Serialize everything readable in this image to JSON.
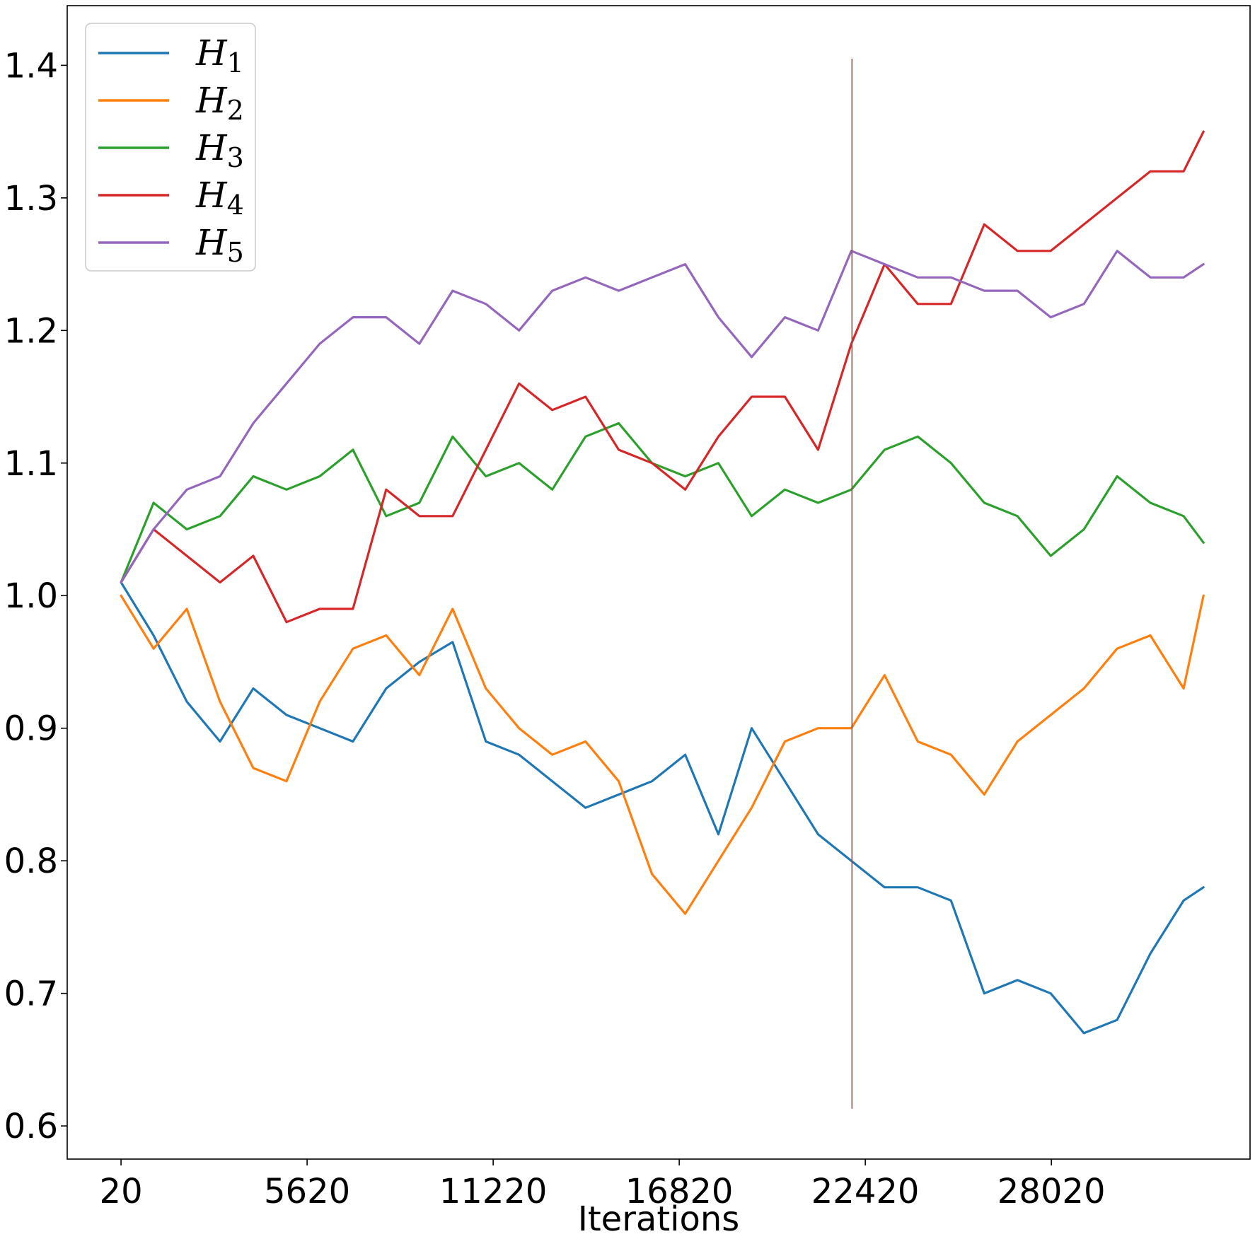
{
  "chart_data": {
    "type": "line",
    "title": "",
    "xlabel": "Iterations",
    "ylabel": "",
    "xlim": [
      -1600,
      34000
    ],
    "ylim": [
      0.575,
      1.445
    ],
    "x_ticks": [
      20,
      5620,
      11220,
      16820,
      22420,
      28020
    ],
    "x_tick_labels": [
      "20",
      "5620",
      "11220",
      "16820",
      "22420",
      "28020"
    ],
    "y_ticks": [
      0.6,
      0.7,
      0.8,
      0.9,
      1.0,
      1.1,
      1.2,
      1.3,
      1.4
    ],
    "y_tick_labels": [
      "0.6",
      "0.7",
      "0.8",
      "0.9",
      "1.0",
      "1.1",
      "1.2",
      "1.3",
      "1.4"
    ],
    "grid": false,
    "legend_position": "top-left",
    "vertical_marker": {
      "x": 22020,
      "y_range": [
        0.613,
        1.405
      ],
      "color": "#8c564b"
    },
    "x": [
      20,
      1000,
      2000,
      3000,
      4000,
      5000,
      6000,
      7000,
      8000,
      9000,
      10000,
      11000,
      12000,
      13000,
      14000,
      15000,
      16000,
      17000,
      18000,
      19000,
      20000,
      21000,
      22000,
      23000,
      24000,
      25000,
      26000,
      27000,
      28000,
      29000,
      30000,
      31000,
      32000,
      32600
    ],
    "series": [
      {
        "name": "1",
        "color": "#1f77b4",
        "values": [
          1.01,
          0.97,
          0.92,
          0.89,
          0.93,
          0.91,
          0.9,
          0.89,
          0.93,
          0.95,
          0.965,
          0.89,
          0.88,
          0.86,
          0.84,
          0.85,
          0.86,
          0.88,
          0.82,
          0.9,
          0.86,
          0.82,
          0.8,
          0.78,
          0.78,
          0.77,
          0.7,
          0.71,
          0.7,
          0.67,
          0.68,
          0.73,
          0.77,
          0.78
        ]
      },
      {
        "name": "2",
        "color": "#ff7f0e",
        "values": [
          1.0,
          0.96,
          0.99,
          0.92,
          0.87,
          0.86,
          0.92,
          0.96,
          0.97,
          0.94,
          0.99,
          0.93,
          0.9,
          0.88,
          0.89,
          0.86,
          0.79,
          0.76,
          0.8,
          0.84,
          0.89,
          0.9,
          0.9,
          0.94,
          0.89,
          0.88,
          0.85,
          0.89,
          0.91,
          0.93,
          0.96,
          0.97,
          0.93,
          1.0
        ]
      },
      {
        "name": "3",
        "color": "#2ca02c",
        "values": [
          1.01,
          1.07,
          1.05,
          1.06,
          1.09,
          1.08,
          1.09,
          1.11,
          1.06,
          1.07,
          1.12,
          1.09,
          1.1,
          1.08,
          1.12,
          1.13,
          1.1,
          1.09,
          1.1,
          1.06,
          1.08,
          1.07,
          1.08,
          1.11,
          1.12,
          1.1,
          1.07,
          1.06,
          1.03,
          1.05,
          1.09,
          1.07,
          1.06,
          1.04
        ]
      },
      {
        "name": "4",
        "color": "#d62728",
        "values": [
          1.01,
          1.05,
          1.03,
          1.01,
          1.03,
          0.98,
          0.99,
          0.99,
          1.08,
          1.06,
          1.06,
          1.11,
          1.16,
          1.14,
          1.15,
          1.11,
          1.1,
          1.08,
          1.12,
          1.15,
          1.15,
          1.11,
          1.19,
          1.25,
          1.22,
          1.22,
          1.28,
          1.26,
          1.26,
          1.28,
          1.3,
          1.32,
          1.32,
          1.35
        ]
      },
      {
        "name": "5",
        "color": "#9467bd",
        "values": [
          1.01,
          1.05,
          1.08,
          1.09,
          1.13,
          1.16,
          1.19,
          1.21,
          1.21,
          1.19,
          1.23,
          1.22,
          1.2,
          1.23,
          1.24,
          1.23,
          1.24,
          1.25,
          1.21,
          1.18,
          1.21,
          1.2,
          1.26,
          1.25,
          1.24,
          1.24,
          1.23,
          1.23,
          1.21,
          1.22,
          1.26,
          1.24,
          1.24,
          1.25
        ]
      }
    ],
    "legend_symbol": "H"
  }
}
